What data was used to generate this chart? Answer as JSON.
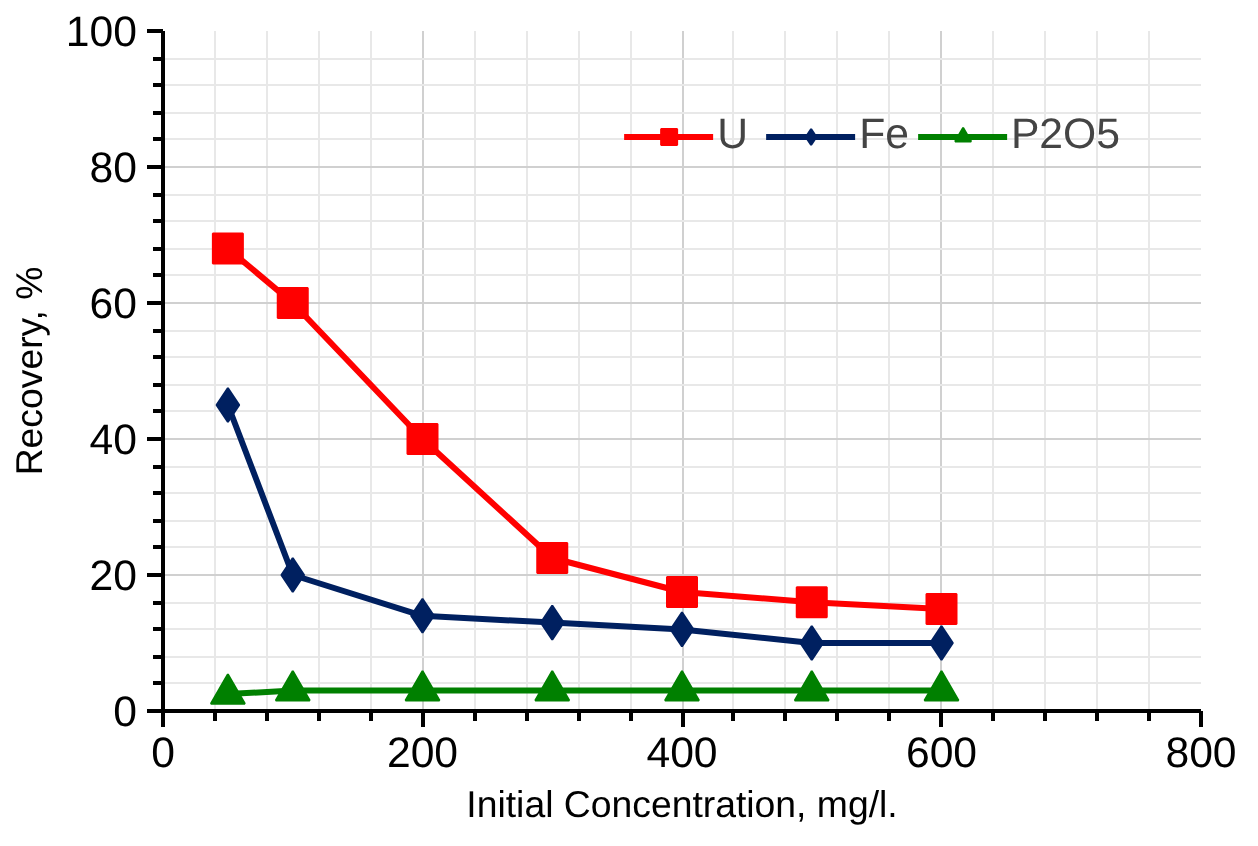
{
  "chart_data": {
    "type": "line",
    "xlabel": "Initial Concentration, mg/l.",
    "ylabel": "Recovery, %",
    "x": [
      50,
      100,
      200,
      300,
      400,
      500,
      600
    ],
    "xlim": [
      0,
      800
    ],
    "xticks": [
      0,
      200,
      400,
      600,
      800
    ],
    "ylim": [
      0,
      100
    ],
    "yticks": [
      0,
      20,
      40,
      60,
      80,
      100
    ],
    "grid": true,
    "legend": "top right",
    "line_style": "solid",
    "series": [
      {
        "name": "U",
        "color": "#ff0000",
        "marker": "square",
        "values": [
          68,
          60,
          40,
          22.5,
          17.5,
          16,
          15
        ]
      },
      {
        "name": "Fe",
        "color": "#002060",
        "marker": "diamond",
        "values": [
          45,
          20,
          14,
          13,
          12,
          10,
          10
        ]
      },
      {
        "name": "P2O5",
        "color": "#008000",
        "marker": "triangle",
        "values": [
          2.5,
          3,
          3,
          3,
          3,
          3,
          3
        ]
      }
    ]
  }
}
